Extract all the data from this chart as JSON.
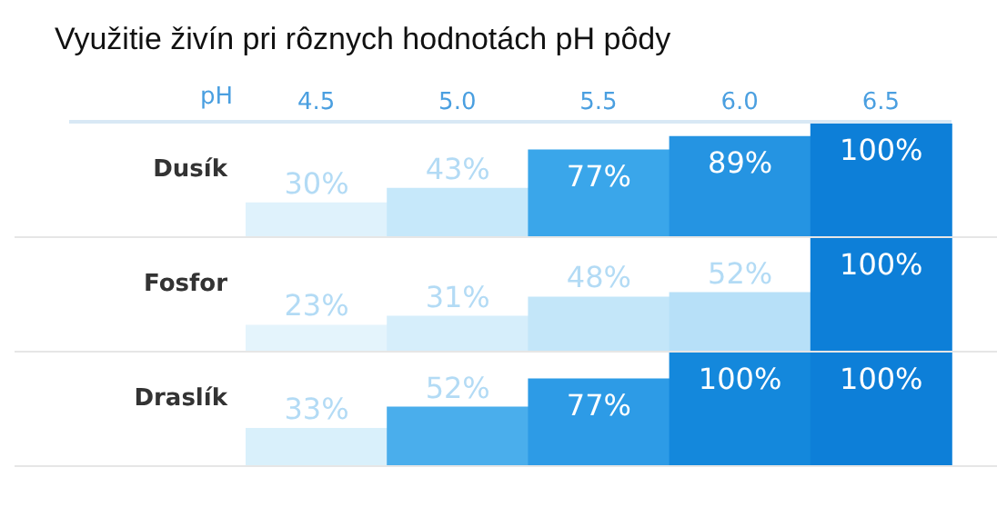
{
  "chart_data": [
    {
      "type": "bar",
      "title": "Využitie živín pri rôznych hodnotách pH pôdy",
      "xlabel": "pH",
      "ylabel": "Dusík",
      "categories": [
        "4.5",
        "5.0",
        "5.5",
        "6.0",
        "6.5"
      ],
      "values": [
        30,
        43,
        77,
        89,
        100
      ],
      "value_labels": [
        "30%",
        "43%",
        "77%",
        "89%",
        "100%"
      ],
      "colors": [
        "#dff2fc",
        "#c6e8fa",
        "#3aa6ea",
        "#2594e2",
        "#0d7fd8"
      ],
      "ylim": [
        0,
        100
      ],
      "tick_labels": "x"
    },
    {
      "type": "bar",
      "ylabel": "Fosfor",
      "categories": [
        "4.5",
        "5.0",
        "5.5",
        "6.0",
        "6.5"
      ],
      "values": [
        23,
        31,
        48,
        52,
        100
      ],
      "value_labels": [
        "23%",
        "31%",
        "48%",
        "52%",
        "100%"
      ],
      "colors": [
        "#e4f4fc",
        "#d6eefb",
        "#c3e6f9",
        "#b7e0f8",
        "#0d7fd8"
      ],
      "ylim": [
        0,
        100
      ],
      "tick_labels": false
    },
    {
      "type": "bar",
      "ylabel": "Draslík",
      "categories": [
        "4.5",
        "5.0",
        "5.5",
        "6.0",
        "6.5"
      ],
      "values": [
        33,
        52,
        77,
        100,
        100
      ],
      "value_labels": [
        "33%",
        "52%",
        "77%",
        "100%",
        "100%"
      ],
      "colors": [
        "#d9f0fb",
        "#4aaeec",
        "#2d9be6",
        "#1488dc",
        "#0d7fd8"
      ],
      "ylim": [
        0,
        100
      ],
      "tick_labels": false
    }
  ]
}
